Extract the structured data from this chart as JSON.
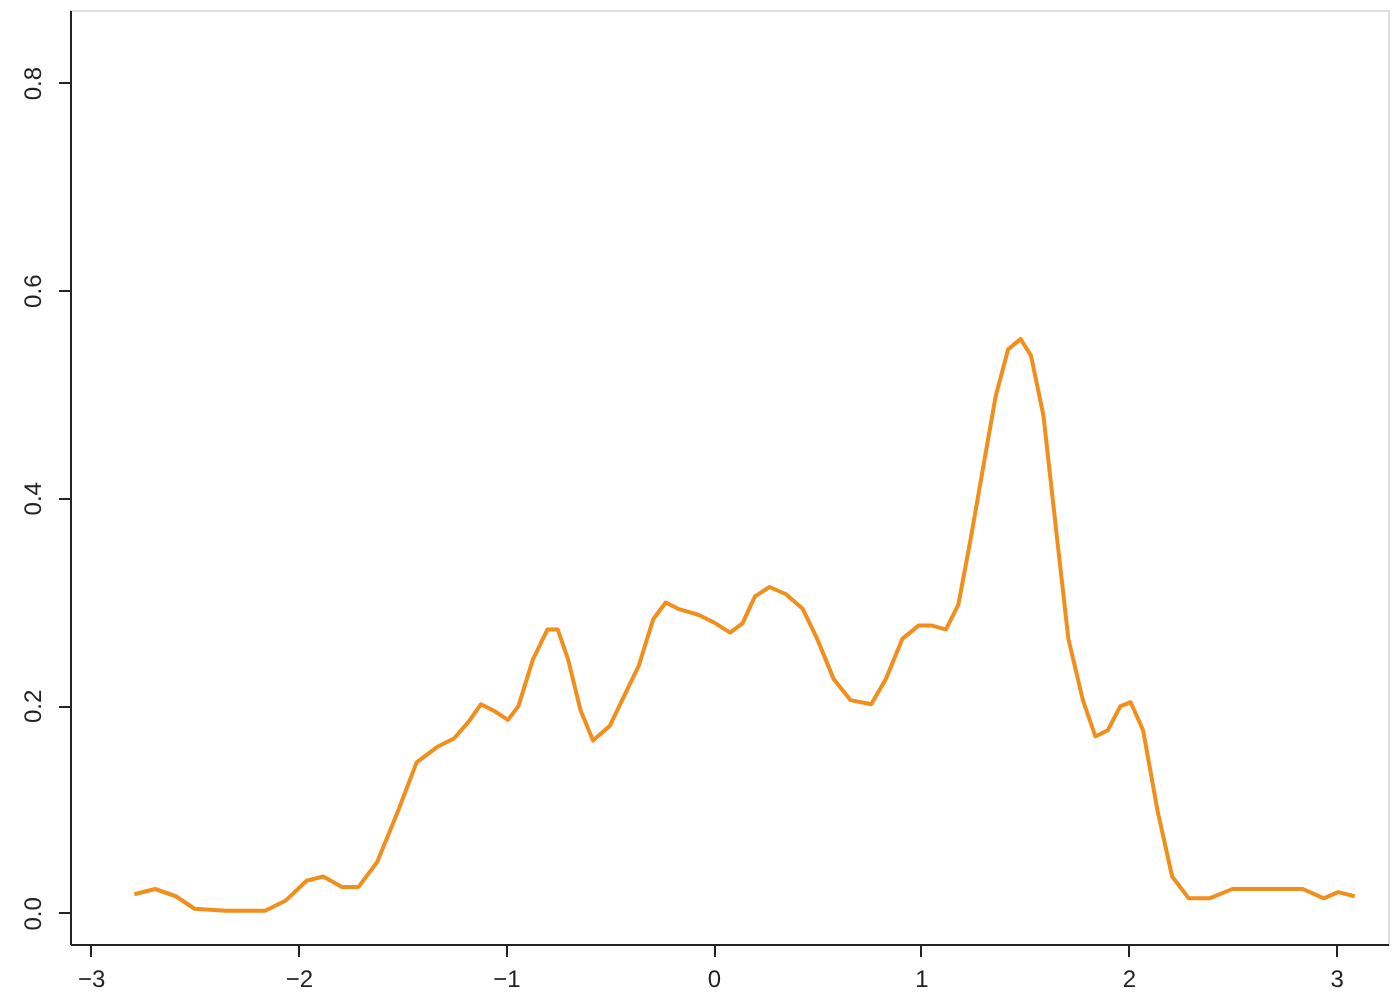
{
  "chart_data": {
    "type": "line",
    "x": [
      -2.79,
      -2.69,
      -2.59,
      -2.5,
      -2.35,
      -2.16,
      -2.06,
      -1.96,
      -1.88,
      -1.79,
      -1.71,
      -1.62,
      -1.52,
      -1.43,
      -1.33,
      -1.25,
      -1.18,
      -1.12,
      -1.06,
      -0.99,
      -0.94,
      -0.87,
      -0.8,
      -0.75,
      -0.7,
      -0.64,
      -0.58,
      -0.5,
      -0.43,
      -0.36,
      -0.29,
      -0.23,
      -0.17,
      -0.07,
      0.01,
      0.08,
      0.14,
      0.2,
      0.27,
      0.35,
      0.43,
      0.5,
      0.58,
      0.66,
      0.76,
      0.83,
      0.91,
      0.99,
      1.05,
      1.12,
      1.18,
      1.24,
      1.3,
      1.36,
      1.42,
      1.48,
      1.53,
      1.59,
      1.65,
      1.71,
      1.78,
      1.84,
      1.9,
      1.96,
      2.01,
      2.07,
      2.14,
      2.21,
      2.29,
      2.39,
      2.5,
      2.7,
      2.84,
      2.94,
      3.01,
      3.09
    ],
    "series": [
      {
        "color": "#f28e1c",
        "values": [
          0.018,
          0.023,
          0.016,
          0.004,
          0.002,
          0.002,
          0.012,
          0.031,
          0.035,
          0.025,
          0.025,
          0.049,
          0.098,
          0.145,
          0.16,
          0.168,
          0.184,
          0.201,
          0.195,
          0.186,
          0.199,
          0.244,
          0.273,
          0.273,
          0.244,
          0.195,
          0.166,
          0.18,
          0.209,
          0.238,
          0.283,
          0.299,
          0.293,
          0.287,
          0.279,
          0.27,
          0.279,
          0.305,
          0.314,
          0.307,
          0.293,
          0.264,
          0.225,
          0.205,
          0.201,
          0.225,
          0.264,
          0.277,
          0.277,
          0.273,
          0.297,
          0.361,
          0.43,
          0.498,
          0.543,
          0.553,
          0.537,
          0.479,
          0.371,
          0.264,
          0.205,
          0.17,
          0.176,
          0.199,
          0.203,
          0.176,
          0.098,
          0.035,
          0.014,
          0.014,
          0.023,
          0.023,
          0.023,
          0.014,
          0.02,
          0.016
        ]
      }
    ],
    "xlim": [
      -3.1,
      3.25
    ],
    "xticks": [
      -3,
      -2,
      -1,
      0,
      1,
      2,
      3
    ],
    "ylim": [
      -0.03,
      0.87
    ],
    "yticks": [
      {
        "value": 0,
        "label": "0.0"
      },
      0.2,
      0.4,
      0.6,
      0.8
    ],
    "grid": false,
    "marker": "none",
    "line_style": "solid"
  }
}
